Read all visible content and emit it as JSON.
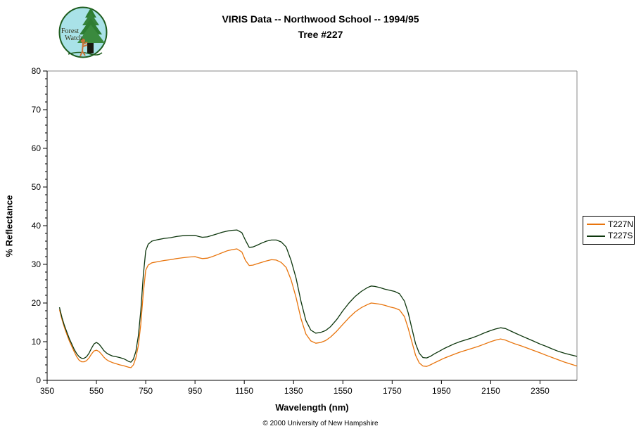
{
  "logo": {
    "line1": "Forest",
    "line2": "Watch"
  },
  "header": {
    "title_line1": "VIRIS Data -- Northwood School -- 1994/95",
    "title_line2": "Tree #227"
  },
  "footer": {
    "copyright": "© 2000 University of New Hampshire"
  },
  "legend": {
    "entries": [
      {
        "label": "T227N",
        "color": "#E8740C"
      },
      {
        "label": "T227S",
        "color": "#0D360D"
      }
    ]
  },
  "chart_data": {
    "type": "line",
    "title": "VIRIS Data -- Northwood School -- 1994/95 -- Tree #227",
    "xlabel": "Wavelength (nm)",
    "ylabel": "% Reflectance",
    "xlim": [
      350,
      2500
    ],
    "ylim": [
      0,
      80
    ],
    "x_ticks": [
      350,
      550,
      750,
      950,
      1150,
      1350,
      1550,
      1750,
      1950,
      2150,
      2350
    ],
    "y_ticks": [
      0,
      10,
      20,
      30,
      40,
      50,
      60,
      70,
      80
    ],
    "y_minor_step": 2,
    "grid": false,
    "legend_position": "right-outside",
    "frame_color": "#888888",
    "axis_color": "#000000",
    "x": [
      400,
      410,
      420,
      430,
      440,
      450,
      460,
      470,
      480,
      490,
      500,
      510,
      520,
      530,
      540,
      550,
      560,
      570,
      580,
      590,
      600,
      615,
      630,
      645,
      660,
      670,
      680,
      690,
      700,
      710,
      720,
      730,
      740,
      750,
      760,
      775,
      800,
      825,
      850,
      875,
      900,
      925,
      950,
      965,
      980,
      1000,
      1020,
      1040,
      1060,
      1080,
      1100,
      1120,
      1140,
      1155,
      1170,
      1185,
      1200,
      1220,
      1240,
      1260,
      1280,
      1300,
      1320,
      1340,
      1360,
      1380,
      1400,
      1420,
      1440,
      1460,
      1480,
      1500,
      1525,
      1550,
      1575,
      1600,
      1625,
      1650,
      1665,
      1680,
      1700,
      1720,
      1740,
      1760,
      1780,
      1800,
      1815,
      1830,
      1845,
      1860,
      1875,
      1890,
      1905,
      1920,
      1940,
      1960,
      1980,
      2000,
      2025,
      2050,
      2075,
      2100,
      2125,
      2150,
      2170,
      2190,
      2210,
      2230,
      2250,
      2275,
      2300,
      2325,
      2350,
      2375,
      2400,
      2425,
      2450,
      2475,
      2500
    ],
    "series": [
      {
        "name": "T227N",
        "color": "#E8740C",
        "values": [
          18.3,
          15.8,
          13.7,
          11.9,
          10.2,
          8.8,
          7.4,
          6.1,
          5.2,
          4.8,
          4.8,
          5.1,
          5.8,
          6.8,
          7.6,
          7.8,
          7.5,
          6.8,
          6.0,
          5.4,
          5.0,
          4.6,
          4.3,
          4.0,
          3.8,
          3.6,
          3.4,
          3.3,
          4.0,
          5.8,
          9.0,
          14.5,
          22.5,
          28.5,
          29.8,
          30.4,
          30.7,
          31.0,
          31.2,
          31.5,
          31.7,
          31.9,
          32.0,
          31.7,
          31.5,
          31.6,
          32.0,
          32.5,
          33.0,
          33.5,
          33.8,
          34.0,
          33.2,
          31.0,
          29.7,
          29.8,
          30.1,
          30.5,
          30.9,
          31.2,
          31.1,
          30.5,
          29.2,
          26.0,
          21.5,
          16.0,
          12.0,
          10.2,
          9.6,
          9.8,
          10.3,
          11.2,
          12.7,
          14.5,
          16.2,
          17.7,
          18.8,
          19.6,
          20.0,
          19.9,
          19.7,
          19.4,
          19.0,
          18.7,
          18.2,
          16.5,
          13.5,
          10.0,
          6.5,
          4.5,
          3.7,
          3.6,
          4.0,
          4.5,
          5.1,
          5.7,
          6.2,
          6.7,
          7.3,
          7.8,
          8.3,
          8.8,
          9.4,
          10.0,
          10.4,
          10.7,
          10.4,
          9.9,
          9.4,
          8.9,
          8.3,
          7.7,
          7.1,
          6.5,
          5.9,
          5.3,
          4.7,
          4.2,
          3.7
        ]
      },
      {
        "name": "T227S",
        "color": "#0D360D",
        "values": [
          18.9,
          16.3,
          14.2,
          12.5,
          10.8,
          9.4,
          8.0,
          6.9,
          6.1,
          5.7,
          5.7,
          6.1,
          7.0,
          8.3,
          9.4,
          9.8,
          9.4,
          8.6,
          7.7,
          7.1,
          6.7,
          6.3,
          6.1,
          5.9,
          5.6,
          5.3,
          4.9,
          4.7,
          5.5,
          7.5,
          11.5,
          18.0,
          27.0,
          33.5,
          35.2,
          36.0,
          36.4,
          36.7,
          36.9,
          37.2,
          37.4,
          37.5,
          37.5,
          37.2,
          37.0,
          37.1,
          37.5,
          37.9,
          38.3,
          38.6,
          38.8,
          38.9,
          38.2,
          36.2,
          34.4,
          34.5,
          34.9,
          35.5,
          36.0,
          36.3,
          36.3,
          35.8,
          34.5,
          31.0,
          26.5,
          20.5,
          15.5,
          13.0,
          12.2,
          12.4,
          12.9,
          13.9,
          15.7,
          18.0,
          20.0,
          21.7,
          23.0,
          24.0,
          24.4,
          24.3,
          24.0,
          23.6,
          23.3,
          23.0,
          22.4,
          20.5,
          17.5,
          13.5,
          9.5,
          7.0,
          5.9,
          5.8,
          6.2,
          6.8,
          7.5,
          8.2,
          8.8,
          9.4,
          10.0,
          10.5,
          11.0,
          11.6,
          12.3,
          12.9,
          13.3,
          13.6,
          13.4,
          12.8,
          12.2,
          11.5,
          10.8,
          10.1,
          9.4,
          8.8,
          8.1,
          7.5,
          7.0,
          6.6,
          6.2
        ]
      }
    ]
  }
}
